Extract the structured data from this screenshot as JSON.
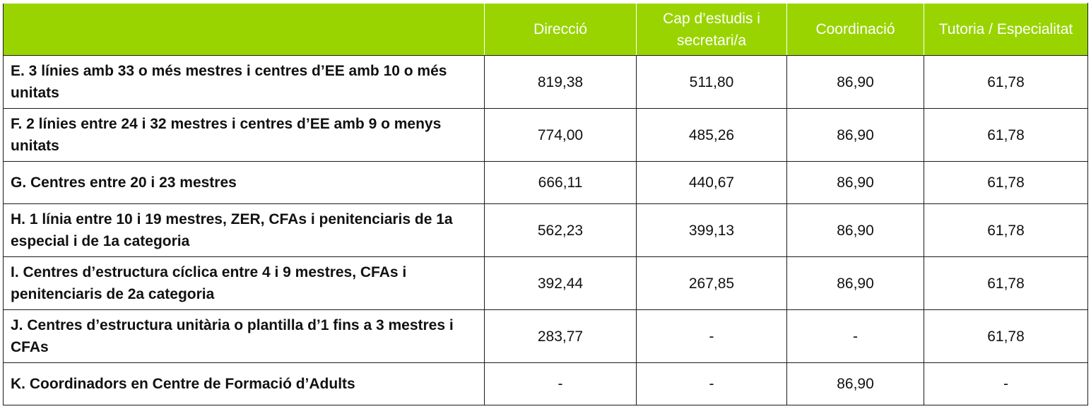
{
  "table": {
    "header": [
      "Direcció",
      "Cap d’estudis i secretari/a",
      "Coordinació",
      "Tutoria / Especialitat"
    ],
    "rows": [
      [
        "E. 3 línies amb 33 o més mestres i centres d’EE amb 10 o més unitats",
        "819,38",
        "511,80",
        "86,90",
        "61,78"
      ],
      [
        "F. 2 línies entre 24 i 32 mestres i centres d’EE amb 9 o menys unitats",
        "774,00",
        "485,26",
        "86,90",
        "61,78"
      ],
      [
        "G. Centres entre 20 i 23 mestres",
        "666,11",
        "440,67",
        "86,90",
        "61,78"
      ],
      [
        "H. 1 línia entre 10 i 19 mestres, ZER, CFAs i penitenciaris de 1a especial i de 1a categoria",
        "562,23",
        "399,13",
        "86,90",
        "61,78"
      ],
      [
        "I. Centres d’estructura cíclica entre 4 i 9 mestres, CFAs i penitenciaris de 2a categoria",
        "392,44",
        "267,85",
        "86,90",
        "61,78"
      ],
      [
        "J. Centres d’estructura unitària o plantilla d’1 fins a 3 mestres i CFAs",
        "283,77",
        "-",
        "-",
        "61,78"
      ],
      [
        "K. Coordinadors en Centre de Formació d’Adults",
        "-",
        "-",
        "86,90",
        "-"
      ]
    ]
  }
}
